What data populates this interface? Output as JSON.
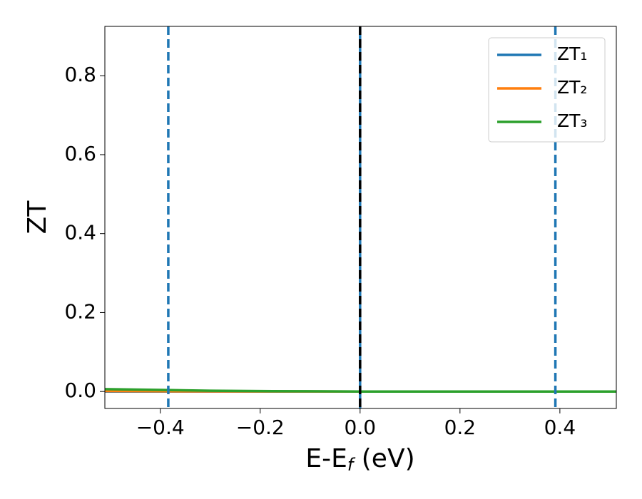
{
  "chart_data": {
    "type": "line",
    "xlabel": [
      "E-E",
      "f",
      " (eV)"
    ],
    "ylabel": "ZT",
    "x": [
      -0.511,
      -0.4,
      -0.3,
      -0.2,
      -0.1,
      0,
      0.1,
      0.2,
      0.3,
      0.4,
      0.513
    ],
    "series": [
      {
        "name": "ZT₁",
        "color": "#1f77b4",
        "values": [
          0,
          0,
          0,
          0,
          0,
          0,
          0,
          0,
          0,
          0,
          0
        ]
      },
      {
        "name": "ZT₂",
        "color": "#ff7f0e",
        "values": [
          0.001,
          0.0005,
          0.0003,
          0.0002,
          0.0001,
          0,
          0,
          0,
          0,
          0,
          0
        ]
      },
      {
        "name": "ZT₃",
        "color": "#2ca02c",
        "values": [
          0.006,
          0.004,
          0.002,
          0.001,
          0.0005,
          0,
          0,
          0,
          0,
          0,
          0
        ]
      }
    ],
    "vlines": [
      {
        "value": -0.384,
        "color": "#1f77b4",
        "style": "dashed"
      },
      {
        "value": 0,
        "color": "#1f77b4",
        "style": "solid"
      },
      {
        "value": 0,
        "color": "#000000",
        "style": "dashed"
      },
      {
        "value": 0.391,
        "color": "#1f77b4",
        "style": "dashed"
      }
    ],
    "xlim": [
      -0.511,
      0.513
    ],
    "ylim": [
      -0.043,
      0.925
    ],
    "xticks": [
      {
        "value": -0.4,
        "label": "−0.4"
      },
      {
        "value": -0.2,
        "label": "−0.2"
      },
      {
        "value": 0,
        "label": "0.0"
      },
      {
        "value": 0.2,
        "label": "0.2"
      },
      {
        "value": 0.4,
        "label": "0.4"
      }
    ],
    "yticks": [
      {
        "value": 0,
        "label": "0.0"
      },
      0.2,
      0.4,
      0.6,
      0.8
    ],
    "legend": "upper right"
  }
}
